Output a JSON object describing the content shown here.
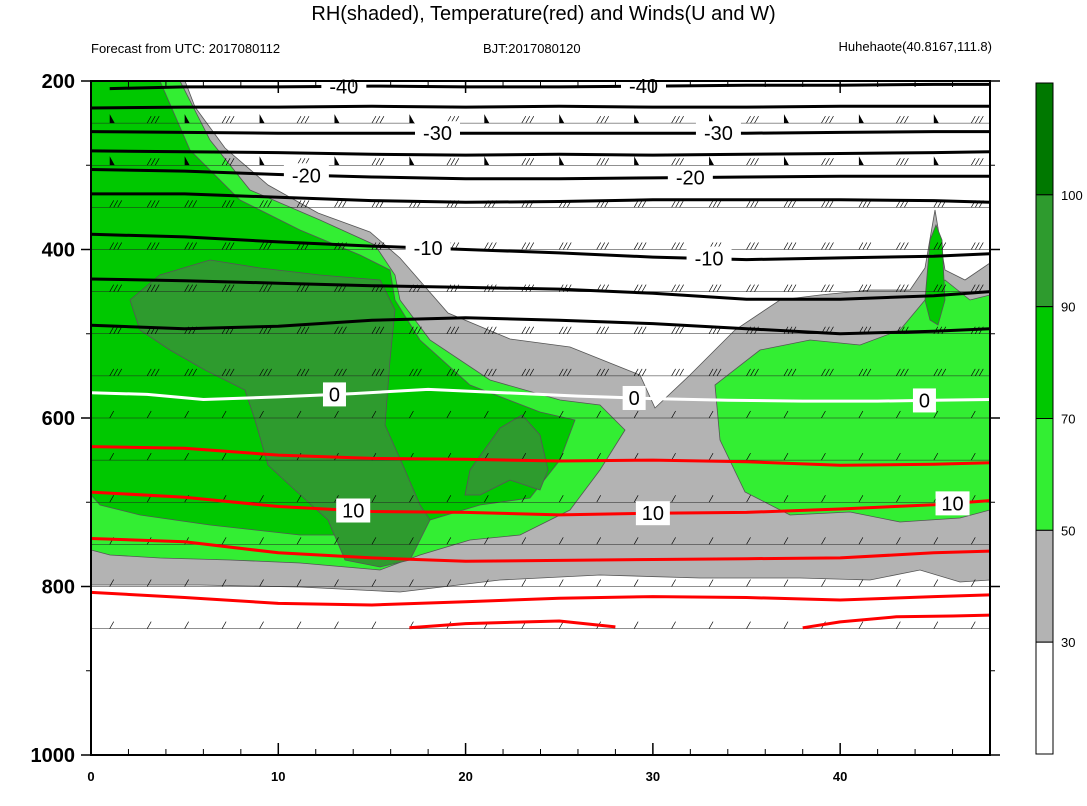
{
  "title": "RH(shaded), Temperature(red) and Winds(U and W)",
  "subtitle_left": "Forecast from UTC: 2017080112",
  "subtitle_center": "BJT:2017080120",
  "subtitle_right": "Huhehaote(40.8167,111.8)",
  "chart_data": {
    "type": "heatmap",
    "title": "RH(shaded), Temperature(red) and Winds(U and W)",
    "xlim": [
      0,
      48
    ],
    "ylim": [
      200,
      1000
    ],
    "x_ticks": [
      0,
      10,
      20,
      30,
      40
    ],
    "y_ticks": [
      200,
      400,
      600,
      800,
      1000
    ],
    "levels": [
      1000,
      975,
      950,
      925,
      900,
      850,
      800,
      750,
      700,
      650,
      600,
      550,
      500,
      450,
      400,
      350,
      300,
      250,
      200
    ],
    "rh_colorbar": {
      "labels": [
        "30",
        "50",
        "70",
        "90",
        "100"
      ],
      "colors": [
        "#ffffff",
        "#b3b3b3",
        "#33ee33",
        "#00c800",
        "#2e9b2e",
        "#007800"
      ]
    },
    "temperature_contours": [
      {
        "value": -40,
        "color": "#000000",
        "label_x": [
          13.5,
          29.5
        ],
        "points": [
          [
            1,
            209
          ],
          [
            5,
            207
          ],
          [
            10,
            207
          ],
          [
            15,
            206
          ],
          [
            20,
            207
          ],
          [
            25,
            207
          ],
          [
            30,
            206
          ],
          [
            35,
            205
          ],
          [
            40,
            205
          ],
          [
            45,
            204
          ],
          [
            48,
            204
          ]
        ]
      },
      {
        "value": -40,
        "color": "#000000",
        "label_x": [],
        "points": [
          [
            0,
            232
          ],
          [
            5,
            231
          ],
          [
            10,
            231
          ],
          [
            15,
            230
          ],
          [
            20,
            231
          ],
          [
            25,
            230
          ],
          [
            30,
            231
          ],
          [
            35,
            231
          ],
          [
            40,
            230
          ],
          [
            45,
            230
          ],
          [
            48,
            230
          ]
        ]
      },
      {
        "value": -30,
        "color": "#000000",
        "label_x": [
          18.5,
          33.5
        ],
        "points": [
          [
            0,
            260
          ],
          [
            5,
            261
          ],
          [
            10,
            262
          ],
          [
            15,
            262
          ],
          [
            20,
            262
          ],
          [
            25,
            262
          ],
          [
            30,
            262
          ],
          [
            35,
            262
          ],
          [
            40,
            261
          ],
          [
            45,
            260
          ],
          [
            48,
            260
          ]
        ]
      },
      {
        "value": -30,
        "color": "#000000",
        "label_x": [],
        "points": [
          [
            0,
            283
          ],
          [
            5,
            284
          ],
          [
            10,
            285
          ],
          [
            15,
            287
          ],
          [
            20,
            288
          ],
          [
            25,
            287
          ],
          [
            30,
            288
          ],
          [
            35,
            287
          ],
          [
            40,
            286
          ],
          [
            45,
            285
          ],
          [
            48,
            284
          ]
        ]
      },
      {
        "value": -20,
        "color": "#000000",
        "label_x": [
          11.5,
          32
        ],
        "points": [
          [
            0,
            305
          ],
          [
            5,
            307
          ],
          [
            10,
            311
          ],
          [
            15,
            314
          ],
          [
            20,
            316
          ],
          [
            25,
            316
          ],
          [
            30,
            315
          ],
          [
            35,
            314
          ],
          [
            40,
            313
          ],
          [
            45,
            313
          ],
          [
            48,
            313
          ]
        ]
      },
      {
        "value": -20,
        "color": "#000000",
        "label_x": [],
        "points": [
          [
            0,
            334
          ],
          [
            5,
            334
          ],
          [
            10,
            338
          ],
          [
            15,
            342
          ],
          [
            20,
            344
          ],
          [
            25,
            343
          ],
          [
            30,
            341
          ],
          [
            35,
            341
          ],
          [
            40,
            341
          ],
          [
            45,
            342
          ],
          [
            48,
            344
          ]
        ]
      },
      {
        "value": -10,
        "color": "#000000",
        "label_x": [
          18,
          33
        ],
        "points": [
          [
            0,
            382
          ],
          [
            5,
            385
          ],
          [
            10,
            391
          ],
          [
            15,
            396
          ],
          [
            20,
            400
          ],
          [
            25,
            404
          ],
          [
            30,
            409
          ],
          [
            35,
            412
          ],
          [
            40,
            410
          ],
          [
            45,
            408
          ],
          [
            48,
            405
          ]
        ]
      },
      {
        "value": -10,
        "color": "#000000",
        "label_x": [],
        "points": [
          [
            0,
            435
          ],
          [
            5,
            437
          ],
          [
            10,
            440
          ],
          [
            15,
            443
          ],
          [
            20,
            445
          ],
          [
            25,
            447
          ],
          [
            30,
            452
          ],
          [
            35,
            459
          ],
          [
            40,
            459
          ],
          [
            45,
            455
          ],
          [
            48,
            450
          ]
        ]
      },
      {
        "value": -10,
        "color": "#000000",
        "label_x": [],
        "points": [
          [
            0,
            490
          ],
          [
            5,
            494
          ],
          [
            10,
            491
          ],
          [
            15,
            484
          ],
          [
            20,
            481
          ],
          [
            25,
            484
          ],
          [
            30,
            488
          ],
          [
            35,
            494
          ],
          [
            40,
            500
          ],
          [
            45,
            497
          ],
          [
            48,
            494
          ]
        ]
      },
      {
        "value": 0,
        "color": "#ffffff",
        "label_x": [
          13,
          29,
          44.5
        ],
        "points": [
          [
            0,
            570
          ],
          [
            3,
            572
          ],
          [
            6,
            578
          ],
          [
            10,
            575
          ],
          [
            14,
            571
          ],
          [
            18,
            566
          ],
          [
            22,
            570
          ],
          [
            26,
            574
          ],
          [
            30,
            577
          ],
          [
            34,
            579
          ],
          [
            38,
            580
          ],
          [
            42,
            580
          ],
          [
            45,
            579
          ],
          [
            48,
            578
          ]
        ]
      },
      {
        "value": 10,
        "color": "#ff0000",
        "label_x": [],
        "points": [
          [
            0,
            634
          ],
          [
            5,
            636
          ],
          [
            10,
            644
          ],
          [
            15,
            648
          ],
          [
            20,
            649
          ],
          [
            25,
            651
          ],
          [
            30,
            650
          ],
          [
            35,
            652
          ],
          [
            40,
            656
          ],
          [
            45,
            655
          ],
          [
            48,
            653
          ]
        ]
      },
      {
        "value": 10,
        "color": "#ff0000",
        "label_x": [
          14,
          30,
          46
        ],
        "points": [
          [
            0,
            688
          ],
          [
            5,
            694
          ],
          [
            10,
            705
          ],
          [
            15,
            711
          ],
          [
            20,
            712
          ],
          [
            25,
            715
          ],
          [
            30,
            713
          ],
          [
            35,
            712
          ],
          [
            40,
            708
          ],
          [
            45,
            703
          ],
          [
            48,
            698
          ]
        ]
      },
      {
        "value": 10,
        "color": "#ff0000",
        "label_x": [],
        "points": [
          [
            0,
            743
          ],
          [
            5,
            747
          ],
          [
            10,
            760
          ],
          [
            15,
            766
          ],
          [
            20,
            770
          ],
          [
            25,
            769
          ],
          [
            30,
            768
          ],
          [
            35,
            767
          ],
          [
            40,
            766
          ],
          [
            45,
            760
          ],
          [
            48,
            758
          ]
        ]
      },
      {
        "value": 10,
        "color": "#ff0000",
        "label_x": [],
        "points": [
          [
            0,
            807
          ],
          [
            5,
            813
          ],
          [
            10,
            820
          ],
          [
            15,
            822
          ],
          [
            20,
            818
          ],
          [
            25,
            814
          ],
          [
            30,
            812
          ],
          [
            35,
            813
          ],
          [
            40,
            816
          ],
          [
            45,
            812
          ],
          [
            48,
            810
          ]
        ]
      },
      {
        "value": 10,
        "color": "#ff0000",
        "label_x": [],
        "points": [
          [
            17,
            849
          ],
          [
            20,
            844
          ],
          [
            25,
            841
          ],
          [
            28,
            848
          ]
        ]
      },
      {
        "value": 10,
        "color": "#ff0000",
        "label_x": [],
        "points": [
          [
            38,
            849
          ],
          [
            40,
            842
          ],
          [
            43,
            836
          ],
          [
            46,
            835
          ],
          [
            48,
            834
          ]
        ]
      }
    ],
    "contour_labels": [
      "-40",
      "-30",
      "-20",
      "-10",
      "0",
      "10"
    ]
  }
}
